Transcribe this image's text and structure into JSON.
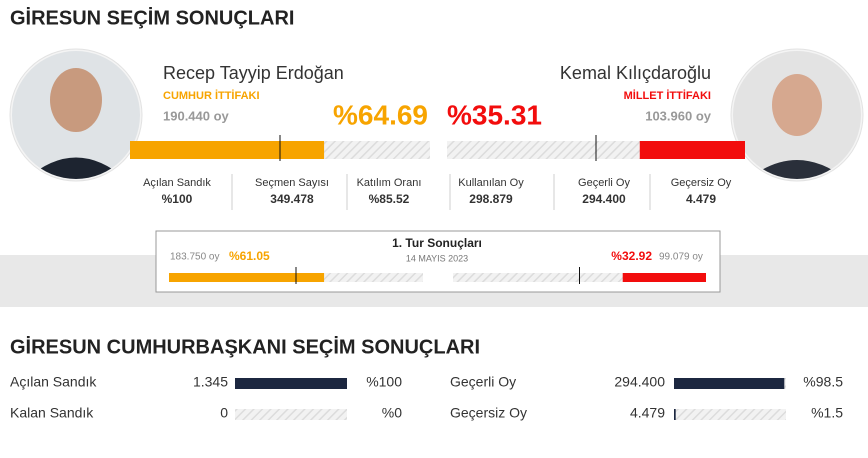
{
  "header": {
    "title": "GİRESUN SEÇİM SONUÇLARI"
  },
  "candidates": [
    {
      "name": "Recep Tayyip Erdoğan",
      "alliance": "CUMHUR İTTİFAKI",
      "votes": "190.440 oy",
      "percent": {
        "value": 64.69,
        "label": "%64.69"
      },
      "color": "#f7a400"
    },
    {
      "name": "Kemal Kılıçdaroğlu",
      "alliance": "MİLLET İTTİFAKI",
      "votes": "103.960 oy",
      "percent": {
        "value": 35.31,
        "label": "%35.31"
      },
      "color": "#f20d0d"
    }
  ],
  "stats": [
    {
      "label": "Açılan Sandık",
      "value": "%100"
    },
    {
      "label": "Seçmen Sayısı",
      "value": "349.478"
    },
    {
      "label": "Katılım Oranı",
      "value": "%85.52"
    },
    {
      "label": "Kullanılan Oy",
      "value": "298.879"
    },
    {
      "label": "Geçerli Oy",
      "value": "294.400"
    },
    {
      "label": "Geçersiz Oy",
      "value": "4.479"
    }
  ],
  "first_round": {
    "title": "1. Tur Sonuçları",
    "date": "14 MAYIS 2023",
    "left": {
      "votes": "183.750 oy",
      "percent": {
        "value": 61.05,
        "label": "%61.05"
      }
    },
    "right": {
      "votes": "99.079 oy",
      "percent": {
        "value": 32.92,
        "label": "%32.92"
      }
    }
  },
  "summary": {
    "title": "GİRESUN CUMHURBAŞKANI SEÇİM SONUÇLARI",
    "color": "#1c2740",
    "rows": [
      {
        "label": "Açılan Sandık",
        "count": "1.345",
        "percent": {
          "value": 100,
          "label": "%100"
        }
      },
      {
        "label": "Kalan Sandık",
        "count": "0",
        "percent": {
          "value": 0,
          "label": "%0"
        }
      },
      {
        "label": "Geçerli Oy",
        "count": "294.400",
        "percent": {
          "value": 98.5,
          "label": "%98.5"
        }
      },
      {
        "label": "Geçersiz Oy",
        "count": "4.479",
        "percent": {
          "value": 1.5,
          "label": "%1.5"
        }
      }
    ]
  }
}
